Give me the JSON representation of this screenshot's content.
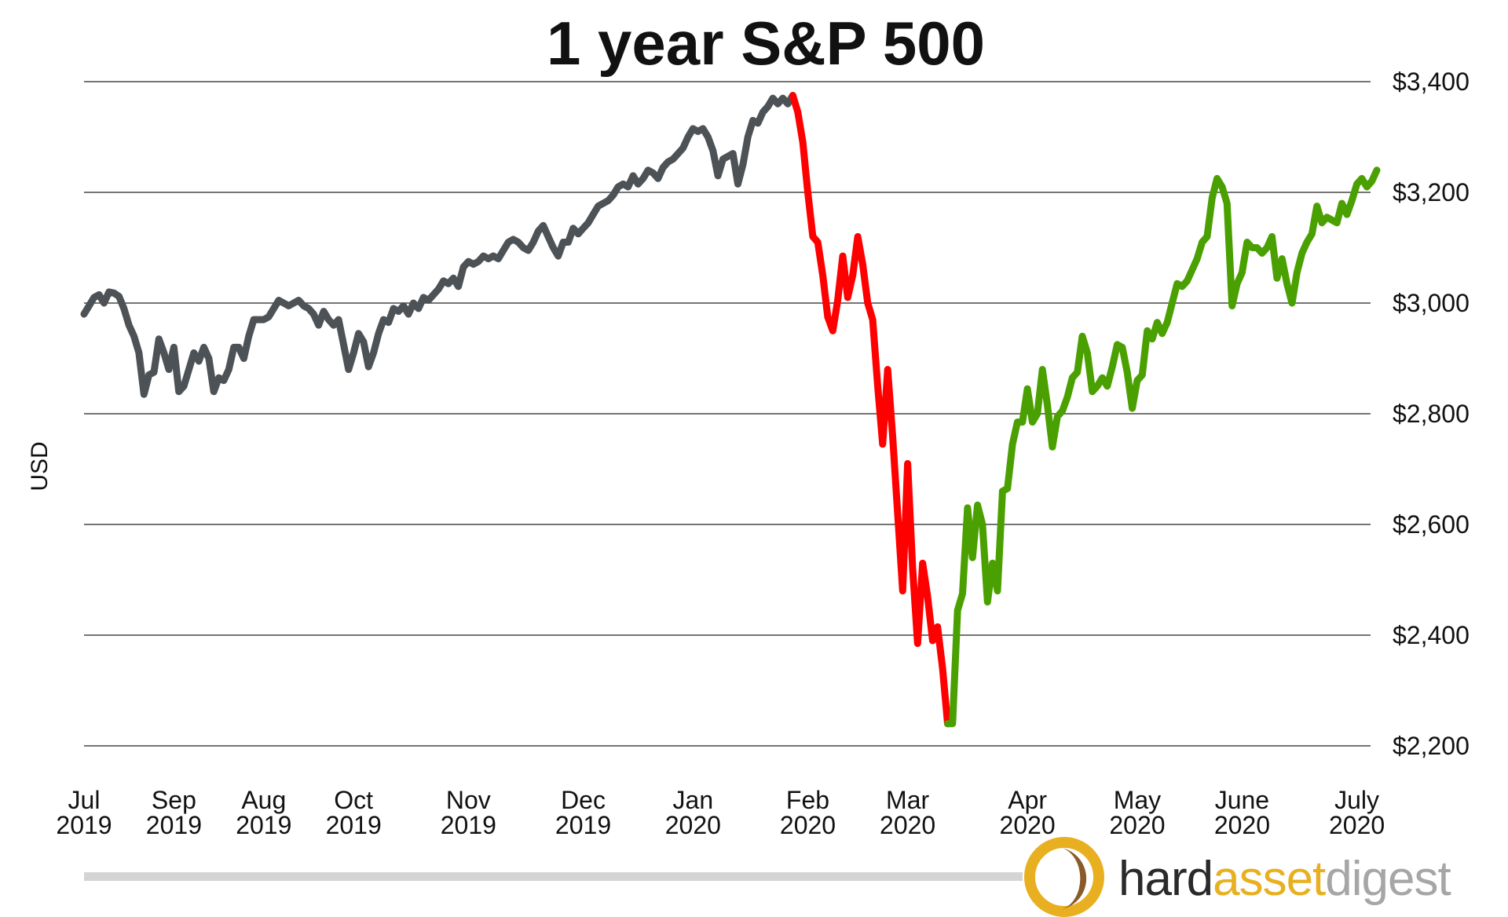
{
  "chart_data": {
    "type": "line",
    "title": "1 year S&P 500",
    "ylabel": "USD",
    "ylim": [
      2200,
      3400
    ],
    "yticks": [
      2200,
      2400,
      2600,
      2800,
      3000,
      3200,
      3400
    ],
    "ytick_labels": [
      "$2,200",
      "$2,400",
      "$2,600",
      "$2,800",
      "$3,000",
      "$3,200",
      "$3,400"
    ],
    "grid": true,
    "x_ticks": [
      {
        "line1": "Jul",
        "line2": "2019",
        "x": 0
      },
      {
        "line1": "Sep",
        "line2": "2019",
        "x": 18
      },
      {
        "line1": "Aug",
        "line2": "2019",
        "x": 36
      },
      {
        "line1": "Oct",
        "line2": "2019",
        "x": 54
      },
      {
        "line1": "Nov",
        "line2": "2019",
        "x": 77
      },
      {
        "line1": "Dec",
        "line2": "2019",
        "x": 100
      },
      {
        "line1": "Jan",
        "line2": "2020",
        "x": 122
      },
      {
        "line1": "Feb",
        "line2": "2020",
        "x": 145
      },
      {
        "line1": "Mar",
        "line2": "2020",
        "x": 165
      },
      {
        "line1": "Apr",
        "line2": "2020",
        "x": 189
      },
      {
        "line1": "May",
        "line2": "2020",
        "x": 211
      },
      {
        "line1": "June",
        "line2": "2020",
        "x": 232
      },
      {
        "line1": "July",
        "line2": "2020",
        "x": 255
      }
    ],
    "series": [
      {
        "color": "#4d5257",
        "points": [
          [
            0,
            2980
          ],
          [
            1,
            2995
          ],
          [
            2,
            3010
          ],
          [
            3,
            3015
          ],
          [
            4,
            3000
          ],
          [
            5,
            3020
          ],
          [
            6,
            3018
          ],
          [
            7,
            3012
          ],
          [
            8,
            2990
          ],
          [
            9,
            2960
          ],
          [
            10,
            2940
          ],
          [
            11,
            2910
          ],
          [
            12,
            2835
          ],
          [
            13,
            2870
          ],
          [
            14,
            2875
          ],
          [
            15,
            2935
          ],
          [
            16,
            2910
          ],
          [
            17,
            2880
          ],
          [
            18,
            2920
          ],
          [
            19,
            2840
          ],
          [
            20,
            2850
          ],
          [
            21,
            2880
          ],
          [
            22,
            2910
          ],
          [
            23,
            2895
          ],
          [
            24,
            2920
          ],
          [
            25,
            2900
          ],
          [
            26,
            2840
          ],
          [
            27,
            2865
          ],
          [
            28,
            2860
          ],
          [
            29,
            2880
          ],
          [
            30,
            2920
          ],
          [
            31,
            2920
          ],
          [
            32,
            2900
          ],
          [
            33,
            2940
          ],
          [
            34,
            2970
          ],
          [
            35,
            2970
          ],
          [
            36,
            2970
          ],
          [
            37,
            2975
          ],
          [
            38,
            2990
          ],
          [
            39,
            3005
          ],
          [
            40,
            3000
          ],
          [
            41,
            2995
          ],
          [
            42,
            3000
          ],
          [
            43,
            3005
          ],
          [
            44,
            2995
          ],
          [
            45,
            2990
          ],
          [
            46,
            2980
          ],
          [
            47,
            2960
          ],
          [
            48,
            2985
          ],
          [
            49,
            2970
          ],
          [
            50,
            2960
          ],
          [
            51,
            2970
          ],
          [
            52,
            2925
          ],
          [
            53,
            2880
          ],
          [
            54,
            2910
          ],
          [
            55,
            2945
          ],
          [
            56,
            2930
          ],
          [
            57,
            2885
          ],
          [
            58,
            2910
          ],
          [
            59,
            2945
          ],
          [
            60,
            2970
          ],
          [
            61,
            2965
          ],
          [
            62,
            2990
          ],
          [
            63,
            2985
          ],
          [
            64,
            2995
          ],
          [
            65,
            2980
          ],
          [
            66,
            3000
          ],
          [
            67,
            2990
          ],
          [
            68,
            3010
          ],
          [
            69,
            3005
          ],
          [
            70,
            3015
          ],
          [
            71,
            3025
          ],
          [
            72,
            3040
          ],
          [
            73,
            3035
          ],
          [
            74,
            3045
          ],
          [
            75,
            3030
          ],
          [
            76,
            3065
          ],
          [
            77,
            3075
          ],
          [
            78,
            3070
          ],
          [
            79,
            3075
          ],
          [
            80,
            3085
          ],
          [
            81,
            3080
          ],
          [
            82,
            3085
          ],
          [
            83,
            3080
          ],
          [
            84,
            3095
          ],
          [
            85,
            3110
          ],
          [
            86,
            3115
          ],
          [
            87,
            3110
          ],
          [
            88,
            3100
          ],
          [
            89,
            3095
          ],
          [
            90,
            3110
          ],
          [
            91,
            3130
          ],
          [
            92,
            3140
          ],
          [
            93,
            3120
          ],
          [
            94,
            3100
          ],
          [
            95,
            3085
          ],
          [
            96,
            3110
          ],
          [
            97,
            3110
          ],
          [
            98,
            3135
          ],
          [
            99,
            3125
          ],
          [
            100,
            3135
          ],
          [
            101,
            3145
          ],
          [
            102,
            3160
          ],
          [
            103,
            3175
          ],
          [
            104,
            3180
          ],
          [
            105,
            3185
          ],
          [
            106,
            3195
          ],
          [
            107,
            3210
          ],
          [
            108,
            3215
          ],
          [
            109,
            3210
          ],
          [
            110,
            3230
          ],
          [
            111,
            3215
          ],
          [
            112,
            3225
          ],
          [
            113,
            3240
          ],
          [
            114,
            3235
          ],
          [
            115,
            3225
          ],
          [
            116,
            3245
          ],
          [
            117,
            3255
          ],
          [
            118,
            3260
          ],
          [
            119,
            3270
          ],
          [
            120,
            3280
          ],
          [
            121,
            3300
          ],
          [
            122,
            3315
          ],
          [
            123,
            3310
          ],
          [
            124,
            3315
          ],
          [
            125,
            3300
          ],
          [
            126,
            3275
          ],
          [
            127,
            3230
          ],
          [
            128,
            3260
          ],
          [
            129,
            3265
          ],
          [
            130,
            3270
          ],
          [
            131,
            3215
          ],
          [
            132,
            3250
          ],
          [
            133,
            3300
          ],
          [
            134,
            3330
          ],
          [
            135,
            3325
          ],
          [
            136,
            3345
          ],
          [
            137,
            3355
          ],
          [
            138,
            3370
          ],
          [
            139,
            3360
          ],
          [
            140,
            3370
          ],
          [
            141,
            3360
          ],
          [
            142,
            3375
          ]
        ]
      },
      {
        "color": "#ff0000",
        "points": [
          [
            142,
            3375
          ],
          [
            143,
            3345
          ],
          [
            144,
            3290
          ],
          [
            145,
            3200
          ],
          [
            146,
            3120
          ],
          [
            147,
            3110
          ],
          [
            148,
            3050
          ],
          [
            149,
            2975
          ],
          [
            150,
            2950
          ],
          [
            151,
            3005
          ],
          [
            152,
            3085
          ],
          [
            153,
            3010
          ],
          [
            154,
            3050
          ],
          [
            155,
            3120
          ],
          [
            156,
            3070
          ],
          [
            157,
            3000
          ],
          [
            158,
            2970
          ],
          [
            159,
            2850
          ],
          [
            160,
            2745
          ],
          [
            161,
            2880
          ],
          [
            162,
            2760
          ],
          [
            163,
            2620
          ],
          [
            164,
            2480
          ],
          [
            165,
            2710
          ],
          [
            166,
            2520
          ],
          [
            167,
            2385
          ],
          [
            168,
            2530
          ],
          [
            169,
            2470
          ],
          [
            170,
            2390
          ],
          [
            171,
            2415
          ],
          [
            172,
            2340
          ],
          [
            173,
            2240
          ]
        ]
      },
      {
        "color": "#4aa000",
        "points": [
          [
            173,
            2240
          ],
          [
            174,
            2240
          ],
          [
            175,
            2445
          ],
          [
            176,
            2475
          ],
          [
            177,
            2630
          ],
          [
            178,
            2540
          ],
          [
            179,
            2635
          ],
          [
            180,
            2600
          ],
          [
            181,
            2460
          ],
          [
            182,
            2530
          ],
          [
            183,
            2480
          ],
          [
            184,
            2660
          ],
          [
            185,
            2665
          ],
          [
            186,
            2745
          ],
          [
            187,
            2785
          ],
          [
            188,
            2785
          ],
          [
            189,
            2845
          ],
          [
            190,
            2785
          ],
          [
            191,
            2800
          ],
          [
            192,
            2880
          ],
          [
            193,
            2815
          ],
          [
            194,
            2740
          ],
          [
            195,
            2795
          ],
          [
            196,
            2805
          ],
          [
            197,
            2830
          ],
          [
            198,
            2865
          ],
          [
            199,
            2875
          ],
          [
            200,
            2940
          ],
          [
            201,
            2910
          ],
          [
            202,
            2840
          ],
          [
            203,
            2850
          ],
          [
            204,
            2865
          ],
          [
            205,
            2850
          ],
          [
            206,
            2885
          ],
          [
            207,
            2925
          ],
          [
            208,
            2920
          ],
          [
            209,
            2875
          ],
          [
            210,
            2810
          ],
          [
            211,
            2860
          ],
          [
            212,
            2870
          ],
          [
            213,
            2950
          ],
          [
            214,
            2935
          ],
          [
            215,
            2965
          ],
          [
            216,
            2945
          ],
          [
            217,
            2965
          ],
          [
            218,
            3000
          ],
          [
            219,
            3035
          ],
          [
            220,
            3030
          ],
          [
            221,
            3040
          ],
          [
            222,
            3060
          ],
          [
            223,
            3080
          ],
          [
            224,
            3110
          ],
          [
            225,
            3120
          ],
          [
            226,
            3190
          ],
          [
            227,
            3225
          ],
          [
            228,
            3210
          ],
          [
            229,
            3180
          ],
          [
            230,
            2995
          ],
          [
            231,
            3035
          ],
          [
            232,
            3055
          ],
          [
            233,
            3110
          ],
          [
            234,
            3100
          ],
          [
            235,
            3100
          ],
          [
            236,
            3090
          ],
          [
            237,
            3100
          ],
          [
            238,
            3120
          ],
          [
            239,
            3045
          ],
          [
            240,
            3080
          ],
          [
            241,
            3035
          ],
          [
            242,
            3000
          ],
          [
            243,
            3055
          ],
          [
            244,
            3090
          ],
          [
            245,
            3110
          ],
          [
            246,
            3125
          ],
          [
            247,
            3175
          ],
          [
            248,
            3145
          ],
          [
            249,
            3155
          ],
          [
            250,
            3150
          ],
          [
            251,
            3145
          ],
          [
            252,
            3180
          ],
          [
            253,
            3160
          ],
          [
            254,
            3185
          ],
          [
            255,
            3215
          ],
          [
            256,
            3225
          ],
          [
            257,
            3210
          ],
          [
            258,
            3220
          ],
          [
            259,
            3240
          ]
        ]
      }
    ]
  },
  "brand": {
    "part1": "hard",
    "part2": "asset",
    "part3": "digest",
    "color1": "#2a2a2a",
    "color2": "#e8b020",
    "color3": "#a6a6a6",
    "logo_gold": "#e8b020",
    "logo_dark": "#8a5a28",
    "footer_bar_color": "#d4d4d4"
  }
}
